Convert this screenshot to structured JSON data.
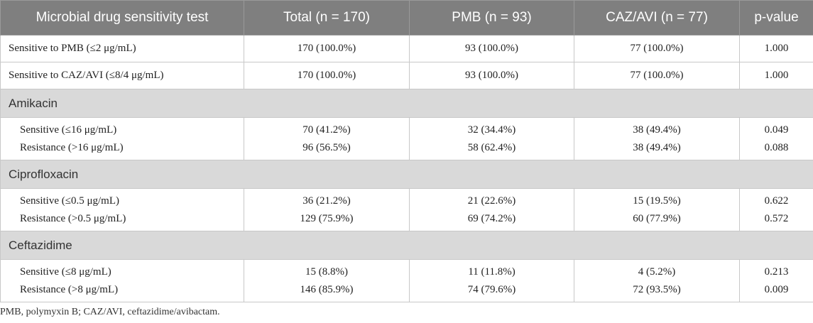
{
  "header": {
    "cols": [
      "Microbial drug sensitivity test",
      "Total (n = 170)",
      "PMB (n = 93)",
      "CAZ/AVI (n = 77)",
      "p-value"
    ]
  },
  "rows": [
    {
      "label": "Sensitive to PMB (≤2 μg/mL)",
      "total": "170 (100.0%)",
      "pmb": "93 (100.0%)",
      "caz": "77 (100.0%)",
      "p": "1.000"
    },
    {
      "label": "Sensitive to CAZ/AVI (≤8/4 μg/mL)",
      "total": "170 (100.0%)",
      "pmb": "93 (100.0%)",
      "caz": "77 (100.0%)",
      "p": "1.000"
    }
  ],
  "sections": [
    {
      "title": "Amikacin",
      "rows": [
        {
          "label": "Sensitive (≤16 μg/mL)",
          "total": "70 (41.2%)",
          "pmb": "32 (34.4%)",
          "caz": "38 (49.4%)",
          "p": "0.049"
        },
        {
          "label": "Resistance (>16 μg/mL)",
          "total": "96 (56.5%)",
          "pmb": "58 (62.4%)",
          "caz": "38 (49.4%)",
          "p": "0.088"
        }
      ]
    },
    {
      "title": "Ciprofloxacin",
      "rows": [
        {
          "label": "Sensitive (≤0.5 μg/mL)",
          "total": "36 (21.2%)",
          "pmb": "21 (22.6%)",
          "caz": "15 (19.5%)",
          "p": "0.622"
        },
        {
          "label": "Resistance (>0.5 μg/mL)",
          "total": "129 (75.9%)",
          "pmb": "69 (74.2%)",
          "caz": "60 (77.9%)",
          "p": "0.572"
        }
      ]
    },
    {
      "title": "Ceftazidime",
      "rows": [
        {
          "label": "Sensitive (≤8 μg/mL)",
          "total": "15 (8.8%)",
          "pmb": "11 (11.8%)",
          "caz": "4 (5.2%)",
          "p": "0.213"
        },
        {
          "label": "Resistance (>8 μg/mL)",
          "total": "146 (85.9%)",
          "pmb": "74 (79.6%)",
          "caz": "72 (93.5%)",
          "p": "0.009"
        }
      ]
    }
  ],
  "footnote": "PMB, polymyxin B; CAZ/AVI, ceftazidime/avibactam.",
  "colors": {
    "header_bg": "#7f7f7f",
    "section_bg": "#d9d9d9",
    "border": "#c8c8c8"
  }
}
